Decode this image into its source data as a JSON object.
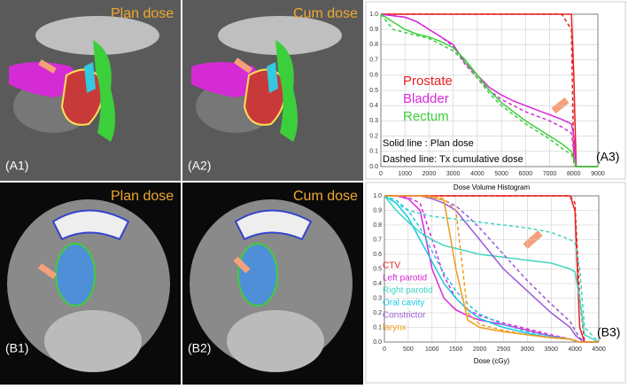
{
  "panels": [
    {
      "label": "(A1)",
      "title": "Plan dose"
    },
    {
      "label": "(A2)",
      "title": "Cum dose"
    },
    {
      "label": "(B1)",
      "title": "Plan dose"
    },
    {
      "label": "(B2)",
      "title": "Cum dose"
    }
  ],
  "chart_data": [
    {
      "type": "line",
      "panel_label": "(A3)",
      "annotations": [
        "Solid line    : Plan dose",
        "Dashed line: Tx cumulative dose"
      ],
      "x": [
        0,
        500,
        1000,
        1500,
        2000,
        2500,
        3000,
        3500,
        4000,
        4500,
        5000,
        5500,
        6000,
        6500,
        7000,
        7500,
        7900,
        8000,
        8100,
        9000
      ],
      "xlim": [
        0,
        9000
      ],
      "xticks": [
        0,
        1000,
        2000,
        3000,
        4000,
        5000,
        6000,
        7000,
        8000,
        9000
      ],
      "ylim": [
        0,
        1
      ],
      "yticks": [
        {
          "value": 0,
          "label": "0.0"
        },
        0.1,
        0.2,
        0.3,
        0.4,
        0.5,
        0.6,
        0.7,
        0.8,
        0.9,
        {
          "value": 1,
          "label": "1.0"
        }
      ],
      "grid": true,
      "series": [
        {
          "name": "Prostate",
          "color": "#e8201f",
          "values": [
            1,
            1,
            1,
            1,
            1,
            1,
            1,
            1,
            1,
            1,
            1,
            1,
            1,
            1,
            1,
            1,
            1,
            0.6,
            0,
            0
          ]
        },
        {
          "color": "#e8201f",
          "dashed": true,
          "values": [
            1,
            1,
            1,
            1,
            1,
            1,
            1,
            1,
            1,
            1,
            1,
            1,
            1,
            1,
            1,
            1,
            0.9,
            0.02,
            0,
            0
          ]
        },
        {
          "name": "Bladder",
          "color": "#d62ad6",
          "values": [
            1,
            0.99,
            0.98,
            0.95,
            0.9,
            0.85,
            0.8,
            0.68,
            0.6,
            0.52,
            0.47,
            0.43,
            0.4,
            0.37,
            0.34,
            0.31,
            0.28,
            0.2,
            0,
            0
          ]
        },
        {
          "color": "#d62ad6",
          "dashed": true,
          "values": [
            1,
            0.99,
            0.98,
            0.95,
            0.9,
            0.85,
            0.79,
            0.67,
            0.58,
            0.5,
            0.44,
            0.4,
            0.36,
            0.33,
            0.3,
            0.26,
            0.22,
            0.1,
            0,
            0
          ]
        },
        {
          "name": "Rectum",
          "color": "#3ccf3c",
          "values": [
            1,
            0.95,
            0.9,
            0.87,
            0.85,
            0.82,
            0.78,
            0.7,
            0.6,
            0.5,
            0.42,
            0.36,
            0.3,
            0.25,
            0.2,
            0.15,
            0.1,
            0.05,
            0,
            0
          ]
        },
        {
          "color": "#3ccf3c",
          "dashed": true,
          "values": [
            1,
            0.9,
            0.88,
            0.86,
            0.84,
            0.8,
            0.76,
            0.68,
            0.58,
            0.48,
            0.4,
            0.34,
            0.28,
            0.23,
            0.18,
            0.12,
            0.08,
            0.04,
            0,
            0
          ]
        }
      ]
    },
    {
      "type": "line",
      "panel_label": "(B3)",
      "title": "Dose Volume Histogram",
      "x_label": "Dose (cGy)",
      "x": [
        0,
        250,
        500,
        750,
        1000,
        1250,
        1500,
        1750,
        2000,
        2500,
        3000,
        3500,
        3900,
        4000,
        4100,
        4200,
        4500
      ],
      "xlim": [
        0,
        4500
      ],
      "xticks": [
        0,
        500,
        1000,
        1500,
        2000,
        2500,
        3000,
        3500,
        4000,
        4500
      ],
      "ylim": [
        0,
        1
      ],
      "yticks": [
        {
          "value": 0,
          "label": "0.0"
        },
        0.1,
        0.2,
        0.3,
        0.4,
        0.5,
        0.6,
        0.7,
        0.8,
        0.9,
        {
          "value": 1,
          "label": "1.0"
        }
      ],
      "grid": true,
      "series": [
        {
          "name": "CTV",
          "color": "#e8201f",
          "values": [
            1,
            1,
            1,
            1,
            1,
            1,
            1,
            1,
            1,
            1,
            1,
            1,
            1,
            0.9,
            0.1,
            0,
            0
          ]
        },
        {
          "color": "#e8201f",
          "dashed": true,
          "values": [
            1,
            1,
            1,
            1,
            1,
            1,
            1,
            1,
            1,
            1,
            1,
            1,
            1,
            0.95,
            0.3,
            0,
            0
          ]
        },
        {
          "name": "Left parotid",
          "color": "#d62ad6",
          "values": [
            1,
            1,
            0.98,
            0.9,
            0.5,
            0.3,
            0.22,
            0.18,
            0.15,
            0.12,
            0.08,
            0.04,
            0.02,
            0.01,
            0,
            0,
            0
          ]
        },
        {
          "color": "#d62ad6",
          "dashed": true,
          "values": [
            1,
            1,
            0.99,
            0.95,
            0.7,
            0.45,
            0.3,
            0.22,
            0.18,
            0.13,
            0.09,
            0.05,
            0.02,
            0.01,
            0,
            0,
            0
          ]
        },
        {
          "name": "Right parotid",
          "color": "#3fd6bf",
          "values": [
            1,
            0.9,
            0.82,
            0.75,
            0.7,
            0.66,
            0.64,
            0.62,
            0.6,
            0.58,
            0.56,
            0.54,
            0.5,
            0.48,
            0.3,
            0.05,
            0
          ]
        },
        {
          "color": "#3fd6bf",
          "dashed": true,
          "values": [
            1,
            0.95,
            0.9,
            0.88,
            0.86,
            0.85,
            0.84,
            0.83,
            0.82,
            0.8,
            0.78,
            0.75,
            0.7,
            0.68,
            0.5,
            0.1,
            0
          ]
        },
        {
          "name": "Oral cavity",
          "color": "#19c8e6",
          "values": [
            1,
            0.95,
            0.85,
            0.7,
            0.55,
            0.4,
            0.3,
            0.22,
            0.16,
            0.1,
            0.06,
            0.03,
            0.02,
            0.01,
            0,
            0,
            0
          ]
        },
        {
          "color": "#19c8e6",
          "dashed": true,
          "values": [
            1,
            0.97,
            0.9,
            0.78,
            0.62,
            0.47,
            0.35,
            0.26,
            0.19,
            0.12,
            0.07,
            0.04,
            0.02,
            0.01,
            0,
            0,
            0
          ]
        },
        {
          "name": "Constrictor",
          "color": "#9a5ad6",
          "values": [
            1,
            1,
            1,
            1,
            0.98,
            0.95,
            0.9,
            0.8,
            0.7,
            0.5,
            0.35,
            0.2,
            0.1,
            0.05,
            0.02,
            0,
            0
          ]
        },
        {
          "color": "#9a5ad6",
          "dashed": true,
          "values": [
            1,
            1,
            1,
            1,
            0.99,
            0.97,
            0.93,
            0.86,
            0.78,
            0.6,
            0.42,
            0.26,
            0.14,
            0.08,
            0.03,
            0,
            0
          ]
        },
        {
          "name": "larynx",
          "color": "#f29a1a",
          "values": [
            1,
            1,
            1,
            1,
            0.99,
            0.97,
            0.5,
            0.15,
            0.1,
            0.07,
            0.05,
            0.03,
            0.02,
            0.01,
            0,
            0,
            0
          ]
        },
        {
          "color": "#f29a1a",
          "dashed": true,
          "values": [
            1,
            1,
            1,
            1,
            1,
            0.98,
            0.9,
            0.2,
            0.12,
            0.08,
            0.05,
            0.03,
            0.02,
            0.01,
            0,
            0,
            0
          ]
        }
      ]
    }
  ]
}
